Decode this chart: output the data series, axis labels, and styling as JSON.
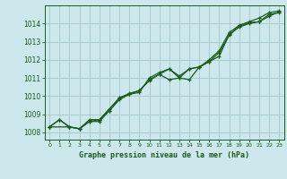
{
  "xlabel": "Graphe pression niveau de la mer (hPa)",
  "bg_color": "#cce8ec",
  "grid_color": "#aacccc",
  "line_color": "#1a5c1a",
  "xlim": [
    -0.5,
    23.5
  ],
  "ylim": [
    1007.6,
    1015.0
  ],
  "yticks": [
    1008,
    1009,
    1010,
    1011,
    1012,
    1013,
    1014
  ],
  "xticks": [
    0,
    1,
    2,
    3,
    4,
    5,
    6,
    7,
    8,
    9,
    10,
    11,
    12,
    13,
    14,
    15,
    16,
    17,
    18,
    19,
    20,
    21,
    22,
    23
  ],
  "line1_x": [
    0,
    1,
    2,
    3,
    4,
    5,
    6,
    7,
    8,
    9,
    10,
    11,
    12,
    13,
    14,
    15,
    16,
    17,
    18,
    19,
    20,
    21,
    22,
    23
  ],
  "line1_y": [
    1008.3,
    1008.7,
    1008.3,
    1008.2,
    1008.6,
    1008.6,
    1009.2,
    1009.8,
    1010.1,
    1010.3,
    1010.9,
    1011.2,
    1010.9,
    1011.0,
    1010.9,
    1011.6,
    1011.9,
    1012.2,
    1013.4,
    1013.8,
    1014.0,
    1014.1,
    1014.5,
    1014.6
  ],
  "line2_x": [
    0,
    1,
    2,
    3,
    4,
    5,
    6,
    7,
    8,
    9,
    10,
    11,
    12,
    13,
    14,
    15,
    16,
    17,
    18,
    19,
    20,
    21,
    22,
    23
  ],
  "line2_y": [
    1008.3,
    1008.7,
    1008.3,
    1008.2,
    1008.7,
    1008.7,
    1009.3,
    1009.9,
    1010.1,
    1010.2,
    1011.0,
    1011.3,
    1011.5,
    1011.1,
    1011.5,
    1011.6,
    1012.0,
    1012.5,
    1013.5,
    1013.9,
    1014.1,
    1014.3,
    1014.6,
    1014.7
  ],
  "line3_x": [
    0,
    2,
    3,
    4,
    5,
    6,
    7,
    8,
    9,
    10,
    11,
    12,
    13,
    14,
    15,
    16,
    17,
    18,
    19,
    20,
    21,
    22,
    23
  ],
  "line3_y": [
    1008.3,
    1008.3,
    1008.2,
    1008.6,
    1008.7,
    1009.2,
    1009.9,
    1010.15,
    1010.3,
    1010.85,
    1011.2,
    1011.5,
    1011.0,
    1011.5,
    1011.6,
    1011.9,
    1012.4,
    1013.35,
    1013.85,
    1014.05,
    1014.1,
    1014.4,
    1014.65
  ]
}
